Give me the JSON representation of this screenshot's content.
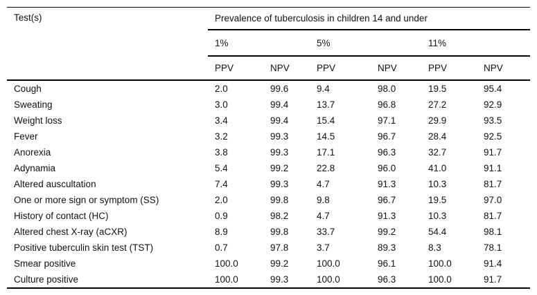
{
  "table": {
    "column_header": "Test(s)",
    "group_header": "Prevalence of tuberculosis in children 14 and under",
    "prevalence_levels": [
      "1%",
      "5%",
      "11%"
    ],
    "metric_headers": [
      "PPV",
      "NPV",
      "PPV",
      "NPV",
      "PPV",
      "NPV"
    ],
    "rows": [
      {
        "test": "Cough",
        "values": [
          "2.0",
          "99.6",
          "9.4",
          "98.0",
          "19.5",
          "95.4"
        ]
      },
      {
        "test": "Sweating",
        "values": [
          "3.0",
          "99.4",
          "13.7",
          "96.8",
          "27.2",
          "92.9"
        ]
      },
      {
        "test": "Weight loss",
        "values": [
          "3.4",
          "99.4",
          "15.4",
          "97.1",
          "29.9",
          "93.5"
        ]
      },
      {
        "test": "Fever",
        "values": [
          "3.2",
          "99.3",
          "14.5",
          "96.7",
          "28.4",
          "92.5"
        ]
      },
      {
        "test": "Anorexia",
        "values": [
          "3.8",
          "99.3",
          "17.1",
          "96.3",
          "32.7",
          "91.7"
        ]
      },
      {
        "test": "Adynamia",
        "values": [
          "5.4",
          "99.2",
          "22.8",
          "96.0",
          "41.0",
          "91.1"
        ]
      },
      {
        "test": "Altered auscultation",
        "values": [
          "7.4",
          "99.3",
          "4.7",
          "91.3",
          "10.3",
          "81.7"
        ]
      },
      {
        "test": "One or more sign or symptom (SS)",
        "values": [
          "2.0",
          "99.8",
          "9.8",
          "96.7",
          "19.5",
          "97.0"
        ]
      },
      {
        "test": "History of contact (HC)",
        "values": [
          "0.9",
          "98.2",
          "4.7",
          "91.3",
          "10.3",
          "81.7"
        ]
      },
      {
        "test": "Altered chest X-ray (aCXR)",
        "values": [
          "8.9",
          "99.8",
          "33.7",
          "99.2",
          "54.4",
          "98.1"
        ]
      },
      {
        "test": "Positive tuberculin skin test (TST)",
        "values": [
          "0.7",
          "97.8",
          "3.7",
          "89.3",
          "8.3",
          "78.1"
        ]
      },
      {
        "test": "Smear positive",
        "values": [
          "100.0",
          "99.2",
          "100.0",
          "96.1",
          "100.0",
          "91.4"
        ]
      },
      {
        "test": "Culture positive",
        "values": [
          "100.0",
          "99.3",
          "100.0",
          "96.3",
          "100.0",
          "91.7"
        ]
      }
    ]
  },
  "colors": {
    "text": "#111111",
    "border": "#000000",
    "background": "#ffffff"
  }
}
